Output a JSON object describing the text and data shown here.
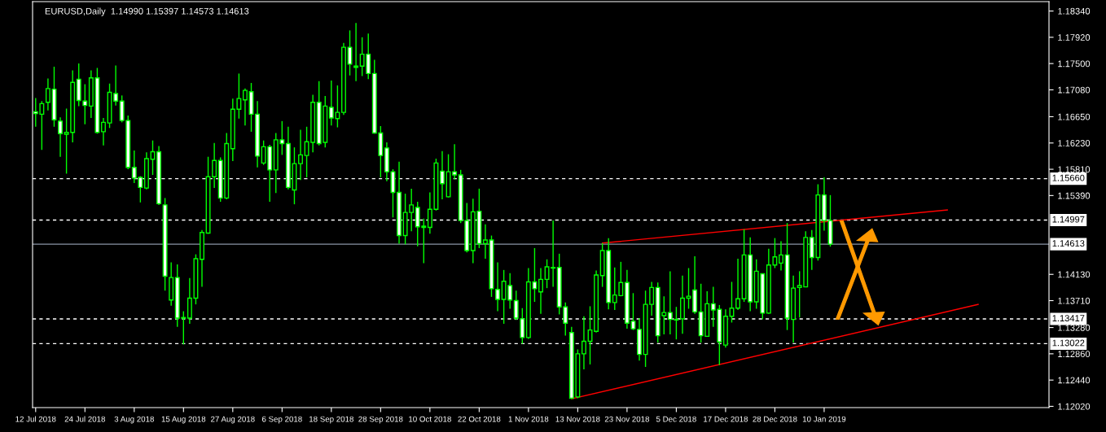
{
  "chart_data": {
    "type": "candlestick",
    "title": "EURUSD,Daily  1.14990 1.15397 1.14573 1.14613",
    "categories": [
      "12 Jul 2018",
      null,
      null,
      null,
      null,
      null,
      null,
      null,
      "24 Jul 2018",
      null,
      null,
      null,
      null,
      null,
      null,
      null,
      "3 Aug 2018",
      null,
      null,
      null,
      null,
      null,
      null,
      null,
      "15 Aug 2018",
      null,
      null,
      null,
      null,
      null,
      null,
      null,
      "27 Aug 2018",
      null,
      null,
      null,
      null,
      null,
      null,
      null,
      "6 Sep 2018",
      null,
      null,
      null,
      null,
      null,
      null,
      null,
      "18 Sep 2018",
      null,
      null,
      null,
      null,
      null,
      null,
      null,
      "28 Sep 2018",
      null,
      null,
      null,
      null,
      null,
      null,
      null,
      "10 Oct 2018",
      null,
      null,
      null,
      null,
      null,
      null,
      null,
      "22 Oct 2018",
      null,
      null,
      null,
      null,
      null,
      null,
      null,
      "1 Nov 2018",
      null,
      null,
      null,
      null,
      null,
      null,
      null,
      "13 Nov 2018",
      null,
      null,
      null,
      null,
      null,
      null,
      null,
      "23 Nov 2018",
      null,
      null,
      null,
      null,
      null,
      null,
      null,
      "5 Dec 2018",
      null,
      null,
      null,
      null,
      null,
      null,
      null,
      "17 Dec 2018",
      null,
      null,
      null,
      null,
      null,
      null,
      null,
      "28 Dec 2018",
      null,
      null,
      null,
      null,
      null,
      null,
      null,
      "10 Jan 2019",
      null,
      null,
      null,
      null,
      null,
      null,
      null,
      null,
      null,
      null,
      null,
      null,
      null,
      null,
      null,
      null,
      null,
      null,
      null,
      null,
      null,
      null,
      null,
      null,
      null,
      null,
      null,
      null,
      null,
      null,
      null,
      null,
      null,
      null,
      null,
      null
    ],
    "ohlc": [
      [
        1.1673,
        1.1695,
        1.1649,
        1.167
      ],
      [
        1.1669,
        1.169,
        1.1612,
        1.1686
      ],
      [
        1.1688,
        1.1726,
        1.1675,
        1.171
      ],
      [
        1.1709,
        1.1745,
        1.1649,
        1.166
      ],
      [
        1.1658,
        1.1664,
        1.1601,
        1.1638
      ],
      [
        1.1637,
        1.1678,
        1.1574,
        1.164
      ],
      [
        1.164,
        1.1739,
        1.1624,
        1.172
      ],
      [
        1.1725,
        1.175,
        1.1682,
        1.1691
      ],
      [
        1.169,
        1.1717,
        1.1653,
        1.1683
      ],
      [
        1.1682,
        1.1739,
        1.1663,
        1.1727
      ],
      [
        1.1727,
        1.1743,
        1.1638,
        1.164
      ],
      [
        1.1641,
        1.1663,
        1.1619,
        1.1656
      ],
      [
        1.1655,
        1.1718,
        1.1647,
        1.1704
      ],
      [
        1.1702,
        1.1747,
        1.1683,
        1.169
      ],
      [
        1.169,
        1.1699,
        1.1656,
        1.1659
      ],
      [
        1.1659,
        1.1667,
        1.1581,
        1.1584
      ],
      [
        1.1584,
        1.1611,
        1.1559,
        1.1567
      ],
      [
        1.1568,
        1.157,
        1.1528,
        1.1552
      ],
      [
        1.1551,
        1.1608,
        1.1549,
        1.1598
      ],
      [
        1.1597,
        1.1627,
        1.1572,
        1.1609
      ],
      [
        1.1609,
        1.1618,
        1.1524,
        1.1526
      ],
      [
        1.1524,
        1.1535,
        1.1387,
        1.141
      ],
      [
        1.1372,
        1.1432,
        1.1363,
        1.1408
      ],
      [
        1.1408,
        1.1429,
        1.1329,
        1.1343
      ],
      [
        1.1344,
        1.1354,
        1.1301,
        1.1343
      ],
      [
        1.1343,
        1.1407,
        1.1334,
        1.1375
      ],
      [
        1.1375,
        1.1445,
        1.1365,
        1.1438
      ],
      [
        1.1437,
        1.1484,
        1.1393,
        1.148
      ],
      [
        1.1479,
        1.1601,
        1.1478,
        1.1569
      ],
      [
        1.1569,
        1.1623,
        1.1551,
        1.1595
      ],
      [
        1.1595,
        1.16,
        1.1529,
        1.1535
      ],
      [
        1.1535,
        1.1639,
        1.1533,
        1.1622
      ],
      [
        1.1614,
        1.1694,
        1.1594,
        1.1677
      ],
      [
        1.1677,
        1.1734,
        1.1662,
        1.1694
      ],
      [
        1.1692,
        1.171,
        1.1651,
        1.1707
      ],
      [
        1.1705,
        1.1719,
        1.1641,
        1.1669
      ],
      [
        1.1669,
        1.169,
        1.1584,
        1.1602
      ],
      [
        1.1591,
        1.1627,
        1.1588,
        1.1617
      ],
      [
        1.1617,
        1.162,
        1.1529,
        1.158
      ],
      [
        1.158,
        1.1639,
        1.1543,
        1.1628
      ],
      [
        1.1628,
        1.1658,
        1.1604,
        1.1622
      ],
      [
        1.1622,
        1.1649,
        1.1549,
        1.1552
      ],
      [
        1.1548,
        1.1616,
        1.1525,
        1.159
      ],
      [
        1.159,
        1.1644,
        1.1564,
        1.1604
      ],
      [
        1.1603,
        1.1649,
        1.1568,
        1.1625
      ],
      [
        1.1624,
        1.17,
        1.1608,
        1.1688
      ],
      [
        1.1688,
        1.1722,
        1.1619,
        1.1622
      ],
      [
        1.1624,
        1.1698,
        1.1616,
        1.1682
      ],
      [
        1.168,
        1.1723,
        1.1651,
        1.1663
      ],
      [
        1.1662,
        1.1715,
        1.1648,
        1.1672
      ],
      [
        1.1672,
        1.1783,
        1.1668,
        1.1776
      ],
      [
        1.1776,
        1.1803,
        1.1731,
        1.1749
      ],
      [
        1.1744,
        1.1815,
        1.1722,
        1.1746
      ],
      [
        1.1746,
        1.1792,
        1.173,
        1.1765
      ],
      [
        1.1765,
        1.1798,
        1.1725,
        1.1734
      ],
      [
        1.1734,
        1.1756,
        1.1638,
        1.1639
      ],
      [
        1.1639,
        1.165,
        1.1568,
        1.1603
      ],
      [
        1.1615,
        1.1624,
        1.1562,
        1.1577
      ],
      [
        1.1577,
        1.1581,
        1.1504,
        1.1544
      ],
      [
        1.1544,
        1.1593,
        1.1462,
        1.1475
      ],
      [
        1.1475,
        1.1542,
        1.1461,
        1.1512
      ],
      [
        1.1512,
        1.155,
        1.1482,
        1.1524
      ],
      [
        1.152,
        1.1529,
        1.1458,
        1.1489
      ],
      [
        1.149,
        1.1502,
        1.1431,
        1.1488
      ],
      [
        1.1488,
        1.1544,
        1.1478,
        1.1517
      ],
      [
        1.1517,
        1.1598,
        1.1515,
        1.1591
      ],
      [
        1.1578,
        1.161,
        1.1533,
        1.1558
      ],
      [
        1.1537,
        1.1605,
        1.1536,
        1.1577
      ],
      [
        1.1577,
        1.1621,
        1.1565,
        1.1572
      ],
      [
        1.1572,
        1.158,
        1.1495,
        1.1499
      ],
      [
        1.1499,
        1.1527,
        1.1448,
        1.1451
      ],
      [
        1.1451,
        1.1534,
        1.1431,
        1.1513
      ],
      [
        1.1514,
        1.155,
        1.1455,
        1.1462
      ],
      [
        1.1462,
        1.1493,
        1.1438,
        1.1468
      ],
      [
        1.1468,
        1.1475,
        1.1377,
        1.139
      ],
      [
        1.1389,
        1.1432,
        1.1354,
        1.1373
      ],
      [
        1.1373,
        1.142,
        1.1334,
        1.1402
      ],
      [
        1.1395,
        1.1415,
        1.1358,
        1.1372
      ],
      [
        1.1371,
        1.1387,
        1.134,
        1.1343
      ],
      [
        1.1342,
        1.1359,
        1.1302,
        1.1312
      ],
      [
        1.1312,
        1.1423,
        1.131,
        1.1401
      ],
      [
        1.1401,
        1.1455,
        1.1369,
        1.139
      ],
      [
        1.1385,
        1.1423,
        1.135,
        1.1405
      ],
      [
        1.1405,
        1.1437,
        1.1391,
        1.1425
      ],
      [
        1.1423,
        1.1499,
        1.1393,
        1.1424
      ],
      [
        1.1424,
        1.1446,
        1.1349,
        1.1361
      ],
      [
        1.1361,
        1.1368,
        1.1315,
        1.1335
      ],
      [
        1.132,
        1.1329,
        1.1214,
        1.1215
      ],
      [
        1.1217,
        1.1293,
        1.1215,
        1.1286
      ],
      [
        1.1286,
        1.1346,
        1.1261,
        1.1306
      ],
      [
        1.1306,
        1.1362,
        1.1269,
        1.1324
      ],
      [
        1.1322,
        1.1419,
        1.132,
        1.1412
      ],
      [
        1.1411,
        1.1463,
        1.1393,
        1.1451
      ],
      [
        1.1451,
        1.1471,
        1.1357,
        1.1368
      ],
      [
        1.1368,
        1.1424,
        1.1356,
        1.138
      ],
      [
        1.1379,
        1.1433,
        1.1378,
        1.14
      ],
      [
        1.14,
        1.142,
        1.1326,
        1.1335
      ],
      [
        1.1338,
        1.1383,
        1.1324,
        1.1326
      ],
      [
        1.1325,
        1.1343,
        1.1275,
        1.1285
      ],
      [
        1.1285,
        1.1387,
        1.1265,
        1.1365
      ],
      [
        1.1365,
        1.1401,
        1.1347,
        1.1392
      ],
      [
        1.1392,
        1.14,
        1.1304,
        1.1315
      ],
      [
        1.1347,
        1.1378,
        1.1317,
        1.1352
      ],
      [
        1.1352,
        1.1418,
        1.1317,
        1.1341
      ],
      [
        1.134,
        1.1361,
        1.1309,
        1.1341
      ],
      [
        1.1342,
        1.1411,
        1.1318,
        1.1375
      ],
      [
        1.1375,
        1.1423,
        1.1358,
        1.1378
      ],
      [
        1.1388,
        1.1442,
        1.135,
        1.1353
      ],
      [
        1.1353,
        1.1398,
        1.1304,
        1.1315
      ],
      [
        1.1314,
        1.1386,
        1.1313,
        1.1366
      ],
      [
        1.1366,
        1.1393,
        1.1329,
        1.1356
      ],
      [
        1.1357,
        1.1364,
        1.1268,
        1.1305
      ],
      [
        1.13,
        1.1357,
        1.1296,
        1.1346
      ],
      [
        1.1346,
        1.1401,
        1.1336,
        1.1359
      ],
      [
        1.1359,
        1.1438,
        1.1356,
        1.1374
      ],
      [
        1.1374,
        1.1485,
        1.1369,
        1.1444
      ],
      [
        1.1444,
        1.1472,
        1.1354,
        1.1369
      ],
      [
        1.1369,
        1.1437,
        1.1358,
        1.1418
      ],
      [
        1.1414,
        1.1414,
        1.1341,
        1.1351
      ],
      [
        1.1351,
        1.1454,
        1.135,
        1.1428
      ],
      [
        1.1428,
        1.1471,
        1.1423,
        1.1441
      ],
      [
        1.1431,
        1.1466,
        1.1419,
        1.1444
      ],
      [
        1.1444,
        1.1495,
        1.1324,
        1.1343
      ],
      [
        1.1341,
        1.1411,
        1.1304,
        1.1391
      ],
      [
        1.1392,
        1.1418,
        1.1344,
        1.1395
      ],
      [
        1.1393,
        1.1482,
        1.1393,
        1.1472
      ],
      [
        1.1472,
        1.1484,
        1.142,
        1.144
      ],
      [
        1.144,
        1.1557,
        1.1435,
        1.154
      ],
      [
        1.154,
        1.1568,
        1.1483,
        1.1499
      ],
      [
        1.1499,
        1.15397,
        1.14573,
        1.14613
      ],
      null,
      null,
      null,
      null,
      null,
      null,
      null,
      null,
      null,
      null,
      null,
      null,
      null,
      null,
      null,
      null,
      null,
      null,
      null,
      null,
      null,
      null,
      null,
      null,
      null,
      null,
      null,
      null,
      null,
      null,
      null,
      null,
      null,
      null,
      null
    ],
    "color": "#00ff00",
    "colors": [
      "#ffffff",
      "#000000",
      "#000000",
      "#ffffff",
      "#ffffff",
      "#000000",
      "#000000",
      "#ffffff",
      "#ffffff",
      "#000000",
      "#ffffff",
      "#000000",
      "#000000",
      "#ffffff",
      "#ffffff",
      "#ffffff",
      "#ffffff",
      "#ffffff",
      "#000000",
      "#000000",
      "#ffffff",
      "#ffffff",
      "#000000",
      "#ffffff",
      "#ffffff",
      "#000000",
      "#000000",
      "#000000",
      "#000000",
      "#000000",
      "#ffffff",
      "#000000",
      "#000000",
      "#000000",
      "#000000",
      "#ffffff",
      "#ffffff",
      "#000000",
      "#ffffff",
      "#000000",
      "#ffffff",
      "#ffffff",
      "#000000",
      "#000000",
      "#000000",
      "#000000",
      "#ffffff",
      "#000000",
      "#ffffff",
      "#000000",
      "#000000",
      "#ffffff",
      "#000000",
      "#000000",
      "#ffffff",
      "#ffffff",
      "#ffffff",
      "#ffffff",
      "#ffffff",
      "#ffffff",
      "#000000",
      "#000000",
      "#ffffff",
      "#ffffff",
      "#000000",
      "#000000",
      "#ffffff",
      "#000000",
      "#ffffff",
      "#ffffff",
      "#ffffff",
      "#000000",
      "#ffffff",
      "#000000",
      "#ffffff",
      "#ffffff",
      "#000000",
      "#ffffff",
      "#ffffff",
      "#ffffff",
      "#000000",
      "#ffffff",
      "#000000",
      "#000000",
      "#000000",
      "#ffffff",
      "#ffffff",
      "#ffffff",
      "#000000",
      "#000000",
      "#000000",
      "#000000",
      "#000000",
      "#ffffff",
      "#000000",
      "#000000",
      "#ffffff",
      "#ffffff",
      "#ffffff",
      "#000000",
      "#000000",
      "#ffffff",
      "#000000",
      "#ffffff",
      "#000000",
      "#000000",
      "#000000",
      "#ffffff",
      "#ffffff",
      "#000000",
      "#ffffff",
      "#ffffff",
      "#000000",
      "#000000",
      "#000000",
      "#000000",
      "#ffffff",
      "#000000",
      "#ffffff",
      "#000000",
      "#000000",
      "#000000",
      "#ffffff",
      "#000000",
      "#000000",
      "#000000",
      "#ffffff",
      "#000000",
      "#ffffff",
      "#ffffff",
      null,
      null,
      null,
      null,
      null,
      null,
      null,
      null,
      null,
      null,
      null,
      null,
      null,
      null,
      null,
      null,
      null,
      null,
      null,
      null,
      null,
      null,
      null,
      null,
      null,
      null,
      null,
      null,
      null,
      null,
      null,
      null,
      null,
      null,
      null
    ],
    "series": [
      {
        "type": "line",
        "color": "#ff0000",
        "values": [
          null,
          null,
          null,
          null,
          null,
          null,
          null,
          null,
          null,
          null,
          null,
          null,
          null,
          null,
          null,
          null,
          null,
          null,
          null,
          null,
          null,
          null,
          null,
          null,
          null,
          null,
          null,
          null,
          null,
          null,
          null,
          null,
          null,
          null,
          null,
          null,
          null,
          null,
          null,
          null,
          null,
          null,
          null,
          null,
          null,
          null,
          null,
          null,
          null,
          null,
          null,
          null,
          null,
          null,
          null,
          null,
          null,
          null,
          null,
          null,
          null,
          null,
          null,
          null,
          null,
          null,
          null,
          null,
          null,
          null,
          null,
          null,
          null,
          null,
          null,
          null,
          null,
          null,
          null,
          null,
          null,
          null,
          null,
          null,
          null,
          null,
          null,
          null,
          null,
          null,
          null,
          null,
          1.1463,
          null,
          null,
          null,
          null,
          null,
          null,
          null,
          null,
          null,
          null,
          null,
          null,
          null,
          null,
          null,
          null,
          null,
          null,
          null,
          null,
          null,
          null,
          null,
          null,
          null,
          null,
          null,
          null,
          null,
          null,
          null,
          null,
          null,
          null,
          null,
          null,
          null,
          null,
          null,
          null,
          null,
          null,
          null,
          null,
          null,
          null,
          null,
          null,
          null,
          null,
          null,
          null,
          null,
          null,
          null,
          1.1516,
          null,
          null,
          null,
          null,
          null,
          null,
          null,
          null,
          null,
          null,
          null,
          null,
          null,
          null,
          null,
          null
        ]
      },
      {
        "type": "line",
        "color": "#ff0000",
        "values": [
          null,
          null,
          null,
          null,
          null,
          null,
          null,
          null,
          null,
          null,
          null,
          null,
          null,
          null,
          null,
          null,
          null,
          null,
          null,
          null,
          null,
          null,
          null,
          null,
          null,
          null,
          null,
          null,
          null,
          null,
          null,
          null,
          null,
          null,
          null,
          null,
          null,
          null,
          null,
          null,
          null,
          null,
          null,
          null,
          null,
          null,
          null,
          null,
          null,
          null,
          null,
          null,
          null,
          null,
          null,
          null,
          null,
          null,
          null,
          null,
          null,
          null,
          null,
          null,
          null,
          null,
          null,
          null,
          null,
          null,
          null,
          null,
          null,
          null,
          null,
          null,
          null,
          null,
          null,
          null,
          null,
          null,
          null,
          null,
          null,
          null,
          null,
          1.1214,
          null,
          null,
          null,
          null,
          null,
          null,
          null,
          null,
          null,
          null,
          null,
          null,
          null,
          null,
          null,
          null,
          null,
          null,
          null,
          null,
          null,
          null,
          null,
          null,
          null,
          null,
          null,
          null,
          null,
          null,
          null,
          null,
          null,
          null,
          null,
          null,
          null,
          null,
          null,
          null,
          null,
          null,
          null,
          null,
          null,
          null,
          null,
          null,
          null,
          null,
          null,
          null,
          null,
          null,
          null,
          null,
          null,
          null,
          null,
          null,
          null,
          null,
          null,
          null,
          null,
          1.1365,
          null,
          null,
          null,
          null,
          null,
          null,
          null,
          null,
          null,
          null,
          null
        ]
      }
    ],
    "ref_lines": [
      {
        "axis": "y",
        "value": 1.1566,
        "label": "1.15660",
        "color": "#ffffff",
        "line_style": "dashed"
      },
      {
        "axis": "y",
        "value": 1.14997,
        "label": "1.14997",
        "color": "#ffffff",
        "line_style": "dashed"
      },
      {
        "axis": "y",
        "value": 1.14613,
        "label": "1.14613",
        "color": "#8a94a6",
        "line_style": "solid"
      },
      {
        "axis": "y",
        "value": 1.13417,
        "label": "1.13417",
        "color": "#ffffff",
        "line_style": "dashed"
      },
      {
        "axis": "y",
        "value": 1.13022,
        "label": "1.13022",
        "color": "#ffffff",
        "line_style": "dashed"
      }
    ],
    "ylim": [
      1.12,
      1.1849
    ],
    "yticks": [
      {
        "value": 1.1834,
        "label": "1.18340"
      },
      {
        "value": 1.1792,
        "label": "1.17920"
      },
      {
        "value": 1.175,
        "label": "1.17500"
      },
      {
        "value": 1.1708,
        "label": "1.17080"
      },
      {
        "value": 1.1665,
        "label": "1.16650"
      },
      {
        "value": 1.1623,
        "label": "1.16230"
      },
      {
        "value": 1.1581,
        "label": "1.15810"
      },
      {
        "value": 1.1539,
        "label": "1.15390"
      },
      {
        "value": 1.1413,
        "label": "1.14130"
      },
      {
        "value": 1.1371,
        "label": "1.13710"
      },
      {
        "value": 1.1328,
        "label": "1.13280"
      },
      {
        "value": 1.1286,
        "label": "1.12860"
      },
      {
        "value": 1.1244,
        "label": "1.12440"
      },
      {
        "value": 1.1202,
        "label": "1.12020"
      }
    ],
    "grid": false,
    "legend": false
  }
}
